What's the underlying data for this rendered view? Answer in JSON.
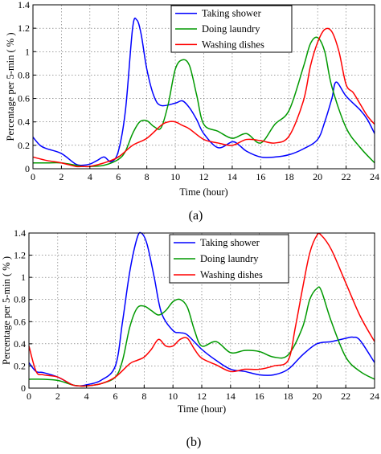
{
  "chart_data": [
    {
      "type": "line",
      "panel_label": "(a)",
      "xlabel": "Time (hour)",
      "ylabel": "Percentage per 5-min ( % )",
      "xlim": [
        0,
        24
      ],
      "ylim": [
        0,
        1.4
      ],
      "xticks": [
        "0",
        "2",
        "4",
        "6",
        "8",
        "10",
        "12",
        "14",
        "16",
        "18",
        "20",
        "22",
        "24"
      ],
      "yticks": [
        "0",
        "0.2",
        "0.4",
        "0.6",
        "0.8",
        "1",
        "1.2",
        "1.4"
      ],
      "grid": true,
      "legend_position": "top-center",
      "series": [
        {
          "name": "Taking shower",
          "color": "#0000ff",
          "x": [
            0,
            0.5,
            1,
            2,
            3,
            3.5,
            4,
            4.5,
            5,
            5.5,
            6,
            6.5,
            7,
            7.3,
            7.6,
            8,
            8.5,
            9,
            10,
            10.5,
            11,
            11.5,
            12,
            13,
            14,
            14.5,
            15,
            16,
            17,
            18,
            19,
            20,
            20.5,
            21,
            21.3,
            22,
            23,
            23.5,
            24
          ],
          "y": [
            0.27,
            0.2,
            0.17,
            0.13,
            0.04,
            0.03,
            0.04,
            0.07,
            0.1,
            0.06,
            0.15,
            0.5,
            1.2,
            1.27,
            1.15,
            0.85,
            0.62,
            0.54,
            0.56,
            0.58,
            0.52,
            0.42,
            0.3,
            0.18,
            0.23,
            0.2,
            0.15,
            0.1,
            0.1,
            0.12,
            0.17,
            0.25,
            0.4,
            0.6,
            0.74,
            0.62,
            0.5,
            0.42,
            0.3
          ]
        },
        {
          "name": "Doing laundry",
          "color": "#009900",
          "x": [
            0,
            1,
            2,
            3,
            3.5,
            4,
            5,
            6,
            6.5,
            7,
            7.5,
            8,
            8.5,
            9,
            9.5,
            10,
            10.5,
            11,
            11.5,
            12,
            13,
            14,
            15,
            16,
            17,
            18,
            19,
            19.5,
            20,
            20.5,
            21,
            22,
            23,
            24
          ],
          "y": [
            0.05,
            0.05,
            0.05,
            0.03,
            0.02,
            0.02,
            0.03,
            0.08,
            0.15,
            0.3,
            0.4,
            0.41,
            0.36,
            0.35,
            0.55,
            0.85,
            0.93,
            0.88,
            0.63,
            0.38,
            0.32,
            0.26,
            0.3,
            0.22,
            0.38,
            0.5,
            0.87,
            1.07,
            1.12,
            1.0,
            0.7,
            0.35,
            0.18,
            0.05
          ]
        },
        {
          "name": "Washing dishes",
          "color": "#ff0000",
          "x": [
            0,
            1,
            2,
            3,
            3.5,
            4,
            5,
            6,
            7,
            8,
            9,
            9.5,
            10,
            10.5,
            11,
            12,
            13,
            14,
            15,
            16,
            17,
            18,
            19,
            19.5,
            20,
            20.5,
            21,
            21.5,
            22,
            22.5,
            23,
            23.5,
            24
          ],
          "y": [
            0.1,
            0.07,
            0.05,
            0.02,
            0.02,
            0.02,
            0.05,
            0.1,
            0.2,
            0.26,
            0.37,
            0.4,
            0.4,
            0.37,
            0.34,
            0.25,
            0.22,
            0.2,
            0.25,
            0.24,
            0.22,
            0.28,
            0.58,
            0.88,
            1.08,
            1.19,
            1.17,
            1.0,
            0.72,
            0.65,
            0.55,
            0.45,
            0.38
          ]
        }
      ]
    },
    {
      "type": "line",
      "panel_label": "(b)",
      "xlabel": "Time (hour)",
      "ylabel": "Percentage per 5-min ( % )",
      "xlim": [
        0,
        24
      ],
      "ylim": [
        0,
        1.4
      ],
      "xticks": [
        "0",
        "2",
        "4",
        "6",
        "8",
        "10",
        "12",
        "14",
        "16",
        "18",
        "20",
        "22",
        "24"
      ],
      "yticks": [
        "0",
        "0.2",
        "0.4",
        "0.6",
        "0.8",
        "1",
        "1.2",
        "1.4"
      ],
      "grid": true,
      "legend_position": "top-center",
      "series": [
        {
          "name": "Taking shower",
          "color": "#0000ff",
          "x": [
            0,
            0.5,
            1,
            2,
            3,
            3.5,
            4,
            5,
            6,
            6.5,
            7,
            7.5,
            7.8,
            8.2,
            8.7,
            9.2,
            10,
            10.5,
            11,
            12,
            13,
            14,
            15,
            16,
            17,
            18,
            19,
            20,
            21,
            22,
            22.5,
            23,
            24
          ],
          "y": [
            0.23,
            0.15,
            0.14,
            0.1,
            0.03,
            0.02,
            0.03,
            0.07,
            0.2,
            0.6,
            1.05,
            1.35,
            1.4,
            1.3,
            1.0,
            0.68,
            0.52,
            0.5,
            0.48,
            0.35,
            0.25,
            0.17,
            0.15,
            0.12,
            0.12,
            0.17,
            0.3,
            0.4,
            0.42,
            0.45,
            0.46,
            0.43,
            0.23
          ]
        },
        {
          "name": "Doing laundry",
          "color": "#009900",
          "x": [
            0,
            1,
            2,
            3,
            3.5,
            4,
            5,
            6,
            6.5,
            7,
            7.5,
            8,
            8.5,
            9,
            9.5,
            10,
            10.5,
            11,
            11.5,
            12,
            13,
            14,
            15,
            16,
            17,
            18,
            19,
            19.5,
            20,
            20.3,
            21,
            22,
            23,
            24
          ],
          "y": [
            0.08,
            0.08,
            0.07,
            0.03,
            0.02,
            0.02,
            0.04,
            0.1,
            0.25,
            0.55,
            0.72,
            0.74,
            0.7,
            0.66,
            0.7,
            0.78,
            0.8,
            0.73,
            0.52,
            0.38,
            0.42,
            0.32,
            0.34,
            0.33,
            0.28,
            0.3,
            0.55,
            0.8,
            0.9,
            0.88,
            0.6,
            0.28,
            0.15,
            0.08
          ]
        },
        {
          "name": "Washing dishes",
          "color": "#ff0000",
          "x": [
            0,
            0.5,
            1,
            2,
            3,
            3.5,
            4,
            5,
            6,
            7,
            7.5,
            8,
            8.5,
            9,
            9.5,
            10,
            10.5,
            11,
            11.5,
            12,
            13,
            14,
            15,
            16,
            17,
            18,
            18.5,
            19,
            19.5,
            20,
            20.3,
            21,
            22,
            23,
            24
          ],
          "y": [
            0.38,
            0.15,
            0.12,
            0.1,
            0.03,
            0.02,
            0.02,
            0.04,
            0.1,
            0.22,
            0.25,
            0.28,
            0.35,
            0.44,
            0.38,
            0.38,
            0.44,
            0.45,
            0.35,
            0.27,
            0.21,
            0.15,
            0.17,
            0.17,
            0.2,
            0.25,
            0.55,
            0.9,
            1.22,
            1.38,
            1.38,
            1.25,
            0.95,
            0.65,
            0.42
          ]
        }
      ]
    }
  ]
}
